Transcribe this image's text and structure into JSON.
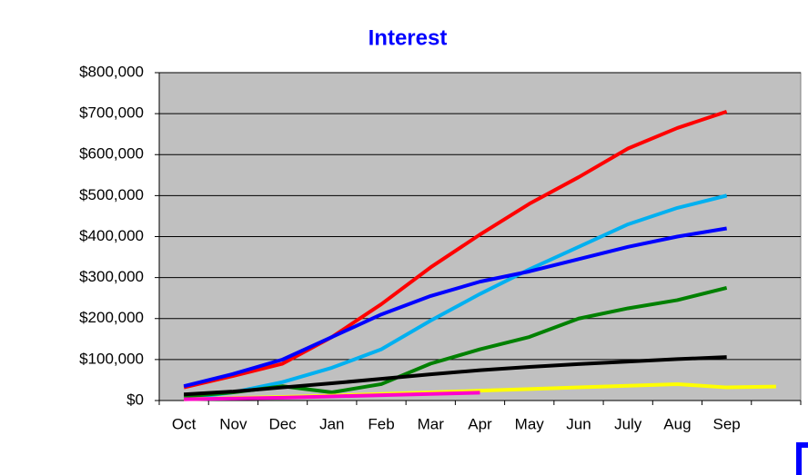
{
  "chart_data": {
    "type": "line",
    "title": "Interest",
    "categories": [
      "Oct",
      "Nov",
      "Dec",
      "Jan",
      "Feb",
      "Mar",
      "Apr",
      "May",
      "Jun",
      "July",
      "Aug",
      "Sep",
      null
    ],
    "series": [
      {
        "color": "#ff0000",
        "values": [
          32000,
          60000,
          90000,
          155000,
          235000,
          325000,
          405000,
          480000,
          545000,
          615000,
          665000,
          705000,
          null
        ]
      },
      {
        "color": "#00b0f0",
        "values": [
          5000,
          20000,
          45000,
          80000,
          125000,
          195000,
          260000,
          320000,
          375000,
          430000,
          470000,
          500000,
          null
        ]
      },
      {
        "color": "#0000ff",
        "values": [
          35000,
          65000,
          100000,
          155000,
          210000,
          255000,
          290000,
          315000,
          345000,
          375000,
          400000,
          420000,
          null
        ]
      },
      {
        "color": "#008000",
        "values": [
          10000,
          20000,
          35000,
          20000,
          40000,
          90000,
          125000,
          155000,
          200000,
          225000,
          245000,
          275000,
          null
        ]
      },
      {
        "color": "#000000",
        "values": [
          15000,
          22000,
          32000,
          42000,
          53000,
          64000,
          74000,
          82000,
          89000,
          95000,
          101000,
          106000,
          null
        ]
      },
      {
        "color": "#ffff00",
        "values": [
          3000,
          6000,
          9000,
          12000,
          16000,
          20000,
          24000,
          28000,
          32000,
          36000,
          40000,
          32000,
          34000
        ]
      },
      {
        "color": "#ff00cc",
        "values": [
          3000,
          5000,
          7000,
          10000,
          13000,
          16000,
          19000,
          null,
          null,
          null,
          null,
          null,
          null
        ]
      }
    ],
    "ylim": [
      0,
      800000
    ],
    "yticks": [
      {
        "value": 0,
        "label": "$0"
      },
      {
        "value": 100000,
        "label": "$100,000"
      },
      {
        "value": 200000,
        "label": "$200,000"
      },
      {
        "value": 300000,
        "label": "$300,000"
      },
      {
        "value": 400000,
        "label": "$400,000"
      },
      {
        "value": 500000,
        "label": "$500,000"
      },
      {
        "value": 600000,
        "label": "$600,000"
      },
      {
        "value": 700000,
        "label": "$700,000"
      },
      {
        "value": 800000,
        "label": "$800,000"
      }
    ],
    "grid": true
  }
}
